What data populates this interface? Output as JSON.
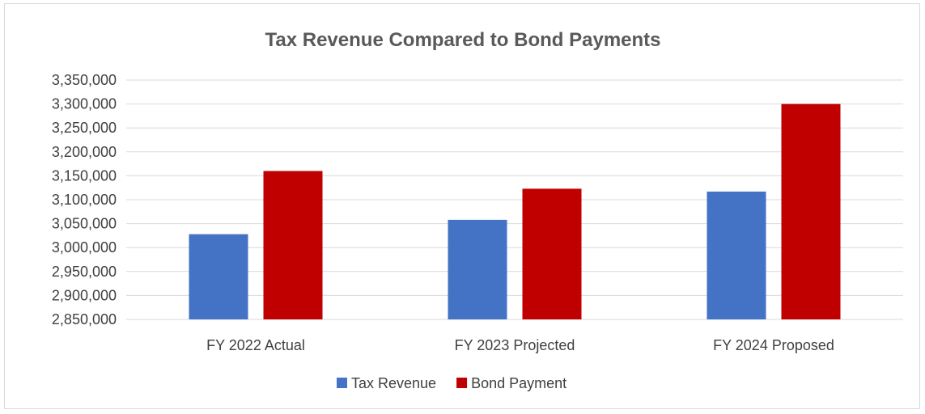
{
  "chart_data": {
    "type": "bar",
    "title": "Tax Revenue Compared to Bond Payments",
    "xlabel": "",
    "ylabel": "",
    "categories": [
      "FY 2022 Actual",
      "FY 2023 Projected",
      "FY 2024 Proposed"
    ],
    "series": [
      {
        "name": "Tax Revenue",
        "color": "#4472C4",
        "values": [
          3028000,
          3058000,
          3117000
        ]
      },
      {
        "name": "Bond Payment",
        "color": "#C00000",
        "values": [
          3160000,
          3123000,
          3300000
        ]
      }
    ],
    "ylim": [
      2850000,
      3350000
    ],
    "yticks": [
      2850000,
      2900000,
      2950000,
      3000000,
      3050000,
      3100000,
      3150000,
      3200000,
      3250000,
      3300000,
      3350000
    ],
    "ytick_labels": [
      "2,850,000",
      "2,900,000",
      "2,950,000",
      "3,000,000",
      "3,050,000",
      "3,100,000",
      "3,150,000",
      "3,200,000",
      "3,250,000",
      "3,300,000",
      "3,350,000"
    ],
    "grid": true,
    "gridline_color": "#d9d9d9",
    "legend_position": "bottom"
  }
}
